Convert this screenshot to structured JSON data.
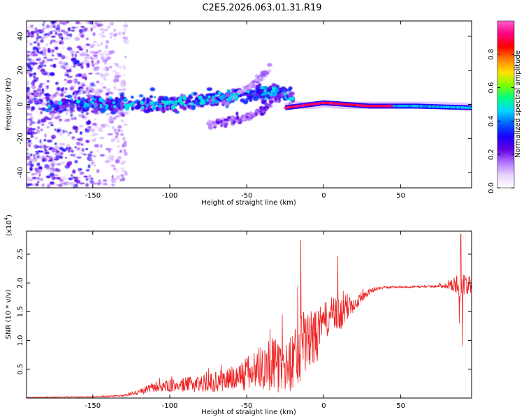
{
  "title": "C2E5.2026.063.01.31.R19",
  "colors": {
    "snr_line": "#ee2222",
    "colormap": [
      "#ffffff",
      "#e8d4ff",
      "#b070ff",
      "#6000e0",
      "#1a00ff",
      "#0060ff",
      "#00d8ff",
      "#00ff80",
      "#80ff00",
      "#ffe000",
      "#ff8000",
      "#ff0000",
      "#ff0080",
      "#ff60d0"
    ]
  },
  "chart_data": [
    {
      "type": "heatmap",
      "name": "spectrogram",
      "xlabel": "Height of straight line (km)",
      "ylabel": "Frequency (Hz)",
      "xlim": [
        -193,
        96
      ],
      "ylim": [
        -49,
        49
      ],
      "xticks": [
        -150,
        -100,
        -50,
        0,
        50
      ],
      "yticks": [
        -40,
        -20,
        0,
        20,
        40
      ],
      "colorbar": {
        "label": "Normalized spectral amplitude",
        "range": [
          0.0,
          1.0
        ],
        "ticks": [
          0.0,
          0.2,
          0.4,
          0.6,
          0.8
        ],
        "tick_labels": [
          "0.0",
          "0.2",
          "0.4",
          "0.6",
          "0.8"
        ]
      },
      "features": [
        {
          "name": "scattered noise",
          "x_range": [
            -193,
            -128
          ],
          "freq_range": [
            -49,
            49
          ],
          "amplitude": 0.12
        },
        {
          "name": "main echo trail",
          "x": [
            -180,
            -130,
            -100,
            -70,
            -50,
            -30,
            -20
          ],
          "freq": [
            0,
            0,
            1,
            3,
            6,
            8,
            3
          ],
          "amplitude": 0.3
        },
        {
          "name": "upper branch",
          "x": [
            -60,
            -45,
            -35
          ],
          "freq": [
            4,
            12,
            22
          ],
          "amplitude": 0.15
        },
        {
          "name": "lower branch",
          "x": [
            -75,
            -55,
            -40,
            -30
          ],
          "freq": [
            -12,
            -9,
            -4,
            4
          ],
          "amplitude": 0.2
        },
        {
          "name": "steady carrier",
          "x": [
            -25,
            0,
            30,
            60,
            96
          ],
          "freq": [
            -2,
            1,
            -1,
            -1,
            -2
          ],
          "amplitude": 0.85
        }
      ]
    },
    {
      "type": "line",
      "name": "snr",
      "xlabel": "Height of straight line (km)",
      "ylabel": "SNR (10 * v/v)",
      "yscale_label": "(x10",
      "yscale_exp": "4",
      "yscale_suffix": ")",
      "xlim": [
        -193,
        96
      ],
      "ylim": [
        0,
        2.9
      ],
      "xticks": [
        -150,
        -100,
        -50,
        0,
        50
      ],
      "yticks": [
        0.5,
        1.0,
        1.5,
        2.0,
        2.5
      ],
      "ytick_labels": [
        "0.5",
        "1.0",
        "1.5",
        "2.0",
        "2.5"
      ],
      "series": [
        {
          "name": "SNR",
          "x": [
            -193,
            -150,
            -130,
            -120,
            -110,
            -100,
            -90,
            -80,
            -70,
            -60,
            -50,
            -45,
            -40,
            -35,
            -30,
            -25,
            -20,
            -15,
            -10,
            -5,
            0,
            5,
            10,
            15,
            20,
            25,
            30,
            35,
            40,
            50,
            60,
            70,
            80,
            85,
            88,
            90,
            92,
            96
          ],
          "base": [
            0.01,
            0.02,
            0.04,
            0.1,
            0.18,
            0.2,
            0.22,
            0.24,
            0.26,
            0.32,
            0.38,
            0.45,
            0.52,
            0.55,
            0.5,
            0.45,
            0.62,
            0.85,
            0.95,
            1.0,
            1.3,
            1.4,
            1.38,
            1.55,
            1.65,
            1.75,
            1.85,
            1.9,
            1.92,
            1.93,
            1.93,
            1.94,
            1.95,
            1.96,
            1.9,
            1.95,
            1.98,
            1.9
          ],
          "noise": [
            0.005,
            0.01,
            0.02,
            0.05,
            0.1,
            0.12,
            0.14,
            0.16,
            0.2,
            0.25,
            0.35,
            0.4,
            0.45,
            0.55,
            0.5,
            0.45,
            0.6,
            0.7,
            0.55,
            0.55,
            0.35,
            0.35,
            0.35,
            0.28,
            0.18,
            0.1,
            0.05,
            0.03,
            0.02,
            0.02,
            0.02,
            0.02,
            0.05,
            0.15,
            0.3,
            0.3,
            0.2,
            0.15
          ],
          "peaks": [
            {
              "x": -15,
              "y": 2.75
            },
            {
              "x": -17,
              "y": 1.95
            },
            {
              "x": 9,
              "y": 2.47
            },
            {
              "x": 5,
              "y": 1.75
            },
            {
              "x": -27,
              "y": 1.45
            },
            {
              "x": -35,
              "y": 1.2
            },
            {
              "x": 89,
              "y": 2.85
            },
            {
              "x": 88,
              "y": 1.3
            },
            {
              "x": 90,
              "y": 0.9
            }
          ]
        }
      ]
    }
  ]
}
